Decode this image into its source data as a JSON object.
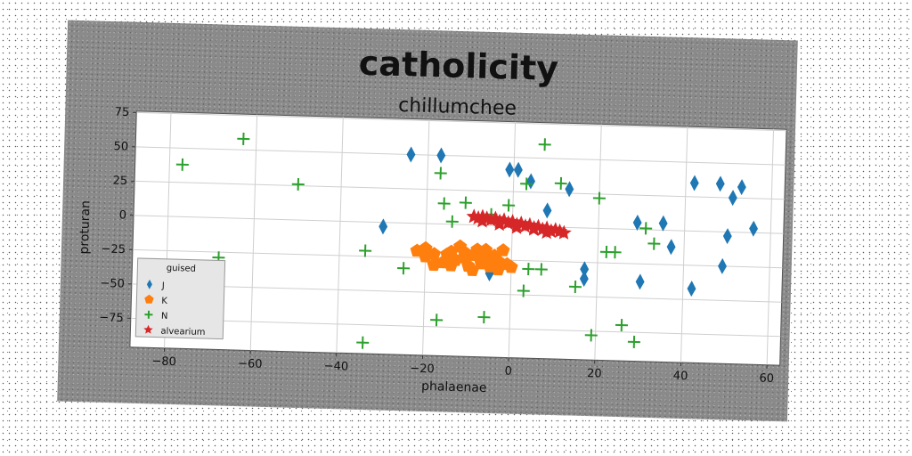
{
  "chart_data": {
    "type": "scatter",
    "title": "catholicity",
    "subtitle": "chillumchee",
    "xlabel": "phalaenae",
    "ylabel": "proturan",
    "xlim": [
      -88,
      63
    ],
    "ylim": [
      -96,
      76
    ],
    "xticks": [
      -80,
      -60,
      -40,
      -20,
      0,
      20,
      40,
      60
    ],
    "yticks": [
      75,
      50,
      25,
      0,
      -25,
      -50,
      -75
    ],
    "xtick_labels": [
      "−80",
      "−60",
      "−40",
      "−20",
      "0",
      "20",
      "40",
      "60"
    ],
    "ytick_labels": [
      "75",
      "50",
      "25",
      "0",
      "−25",
      "−50",
      "−75"
    ],
    "grid": true,
    "legend": {
      "title": "guised",
      "position": "lower-left"
    },
    "colors": {
      "J": "#1f77b4",
      "K": "#ff7f0e",
      "N": "#2ca02c",
      "alvearium": "#d62728",
      "plot_bg": "#ffffff",
      "grid": "#cfcfcf"
    },
    "series": [
      {
        "name": "J",
        "marker": "diamond",
        "points": [
          [
            -24,
            50
          ],
          [
            -17,
            50
          ],
          [
            -1,
            41
          ],
          [
            1,
            41
          ],
          [
            4,
            33
          ],
          [
            8,
            12
          ],
          [
            13,
            28
          ],
          [
            29,
            5
          ],
          [
            30,
            -38
          ],
          [
            35,
            5
          ],
          [
            37,
            -12
          ],
          [
            42,
            35
          ],
          [
            42,
            -42
          ],
          [
            48,
            35
          ],
          [
            49,
            -25
          ],
          [
            50,
            -3
          ],
          [
            51,
            25
          ],
          [
            53,
            33
          ],
          [
            56,
            3
          ],
          [
            -30,
            -3
          ],
          [
            17,
            -30
          ],
          [
            17,
            -37
          ],
          [
            -5,
            -35
          ]
        ]
      },
      {
        "name": "K",
        "marker": "pentagon",
        "points": [
          [
            -22,
            -20
          ],
          [
            -20,
            -18
          ],
          [
            -18,
            -22
          ],
          [
            -16,
            -28
          ],
          [
            -14,
            -20
          ],
          [
            -13,
            -26
          ],
          [
            -11,
            -24
          ],
          [
            -10,
            -30
          ],
          [
            -9,
            -22
          ],
          [
            -8,
            -18
          ],
          [
            -7,
            -28
          ],
          [
            -6,
            -24
          ],
          [
            -5,
            -30
          ],
          [
            -4,
            -22
          ],
          [
            -3,
            -26
          ],
          [
            -2,
            -18
          ],
          [
            -1,
            -28
          ],
          [
            0,
            -30
          ],
          [
            -12,
            -16
          ],
          [
            -15,
            -22
          ],
          [
            -9,
            -33
          ],
          [
            -6,
            -18
          ],
          [
            -3,
            -32
          ],
          [
            -18,
            -30
          ],
          [
            -20,
            -24
          ],
          [
            -7,
            -24
          ],
          [
            -11,
            -20
          ],
          [
            -14,
            -30
          ]
        ]
      },
      {
        "name": "N",
        "marker": "plus",
        "points": [
          [
            -63,
            58
          ],
          [
            -77,
            38
          ],
          [
            -50,
            26
          ],
          [
            -68,
            -29
          ],
          [
            -34,
            -21
          ],
          [
            -34,
            -88
          ],
          [
            -25,
            -33
          ],
          [
            -17,
            37
          ],
          [
            -16,
            15
          ],
          [
            -11,
            16
          ],
          [
            -14,
            2
          ],
          [
            -5,
            8
          ],
          [
            -1,
            15
          ],
          [
            3,
            31
          ],
          [
            7,
            60
          ],
          [
            11,
            32
          ],
          [
            20,
            22
          ],
          [
            22,
            -17
          ],
          [
            24,
            -17
          ],
          [
            31,
            1
          ],
          [
            33,
            -10
          ],
          [
            3,
            -47
          ],
          [
            4,
            -31
          ],
          [
            7,
            -31
          ],
          [
            15,
            -43
          ],
          [
            -17,
            -70
          ],
          [
            -6,
            -67
          ],
          [
            19,
            -78
          ],
          [
            26,
            -70
          ],
          [
            29,
            -82
          ]
        ]
      },
      {
        "name": "alvearium",
        "marker": "star",
        "points": [
          [
            -9,
            6
          ],
          [
            -8,
            5
          ],
          [
            -7,
            6
          ],
          [
            -6,
            5
          ],
          [
            -5,
            4
          ],
          [
            -4,
            5
          ],
          [
            -3,
            3
          ],
          [
            -2,
            4
          ],
          [
            -1,
            2
          ],
          [
            0,
            3
          ],
          [
            1,
            1
          ],
          [
            2,
            2
          ],
          [
            3,
            0
          ],
          [
            4,
            1
          ],
          [
            5,
            -1
          ],
          [
            6,
            0
          ],
          [
            7,
            -2
          ],
          [
            8,
            -1
          ],
          [
            9,
            -3
          ],
          [
            10,
            -2
          ],
          [
            11,
            -3
          ],
          [
            12,
            -4
          ],
          [
            -7,
            3
          ],
          [
            -3,
            1
          ],
          [
            1,
            -1
          ],
          [
            5,
            -2
          ],
          [
            8,
            -4
          ]
        ]
      }
    ]
  }
}
